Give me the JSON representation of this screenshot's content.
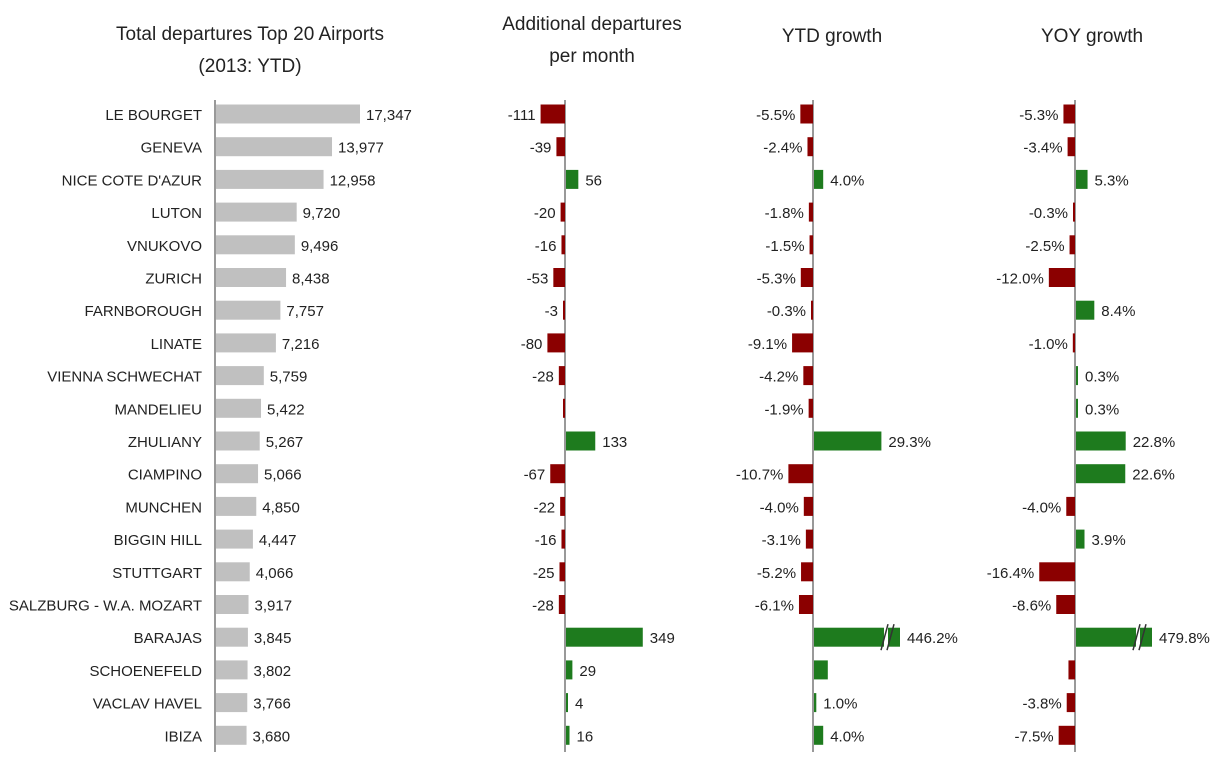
{
  "colors": {
    "gray_bar": "#c0c0c0",
    "positive": "#1e7b1e",
    "negative": "#8b0000",
    "axis": "#333333"
  },
  "chart_data": [
    {
      "type": "bar",
      "orientation": "horizontal",
      "title_lines": [
        "Total departures  Top 20 Airports",
        "(2013: YTD)"
      ],
      "categories": [
        "LE BOURGET",
        "GENEVA",
        "NICE COTE D'AZUR",
        "LUTON",
        "VNUKOVO",
        "ZURICH",
        "FARNBOROUGH",
        "LINATE",
        "VIENNA SCHWECHAT",
        "MANDELIEU",
        "ZHULIANY",
        "CIAMPINO",
        "MUNCHEN",
        "BIGGIN HILL",
        "STUTTGART",
        "SALZBURG  - W.A. MOZART",
        "BARAJAS",
        "SCHOENEFELD",
        "VACLAV  HAVEL",
        "IBIZA"
      ],
      "values": [
        17347,
        13977,
        12958,
        9720,
        9496,
        8438,
        7757,
        7216,
        5759,
        5422,
        5267,
        5066,
        4850,
        4447,
        4066,
        3917,
        3845,
        3802,
        3766,
        3680
      ],
      "labels": [
        "17,347",
        "13,977",
        "12,958",
        "9,720",
        "9,496",
        "8,438",
        "7,757",
        "7,216",
        "5,759",
        "5,422",
        "5,267",
        "5,066",
        "4,850",
        "4,447",
        "4,066",
        "3,917",
        "3,845",
        "3,802",
        "3,766",
        "3,680"
      ]
    },
    {
      "type": "bar",
      "orientation": "horizontal",
      "title_lines": [
        "Additional departures",
        "per month"
      ],
      "values": [
        -111,
        -39,
        56,
        -20,
        -16,
        -53,
        -3,
        -80,
        -28,
        -5,
        133,
        -67,
        -22,
        -16,
        -25,
        -28,
        349,
        29,
        4,
        16
      ],
      "labels": [
        "-111",
        "-39",
        "56",
        "-20",
        "-16",
        "-53",
        "-3",
        "-80",
        "-28",
        "",
        "133",
        "-67",
        "-22",
        "-16",
        "-25",
        "-28",
        "349",
        "29",
        "4",
        "16"
      ]
    },
    {
      "type": "bar",
      "orientation": "horizontal",
      "title_lines": [
        "YTD growth"
      ],
      "values": [
        -5.5,
        -2.4,
        4.0,
        -1.8,
        -1.5,
        -5.3,
        -0.3,
        -9.1,
        -4.2,
        -1.9,
        29.3,
        -10.7,
        -4.0,
        -3.1,
        -5.2,
        -6.1,
        446.2,
        6.0,
        1.0,
        4.0
      ],
      "labels": [
        "-5.5%",
        "-2.4%",
        "4.0%",
        "-1.8%",
        "-1.5%",
        "-5.3%",
        "-0.3%",
        "-9.1%",
        "-4.2%",
        "-1.9%",
        "29.3%",
        "-10.7%",
        "-4.0%",
        "-3.1%",
        "-5.2%",
        "-6.1%",
        "446.2%",
        "",
        "1.0%",
        "4.0%"
      ],
      "axis_break": [
        false,
        false,
        false,
        false,
        false,
        false,
        false,
        false,
        false,
        false,
        false,
        false,
        false,
        false,
        false,
        false,
        true,
        false,
        false,
        false
      ]
    },
    {
      "type": "bar",
      "orientation": "horizontal",
      "title_lines": [
        "YOY growth"
      ],
      "values": [
        -5.3,
        -3.4,
        5.3,
        -0.3,
        -2.5,
        -12.0,
        8.4,
        -1.0,
        0.3,
        0.3,
        22.8,
        22.6,
        -4.0,
        3.9,
        -16.4,
        -8.6,
        479.8,
        -3.0,
        -3.8,
        -7.5
      ],
      "labels": [
        "-5.3%",
        "-3.4%",
        "5.3%",
        "-0.3%",
        "-2.5%",
        "-12.0%",
        "8.4%",
        "-1.0%",
        "0.3%",
        "0.3%",
        "22.8%",
        "22.6%",
        "-4.0%",
        "3.9%",
        "-16.4%",
        "-8.6%",
        "479.8%",
        "",
        "-3.8%",
        "-7.5%"
      ],
      "axis_break": [
        false,
        false,
        false,
        false,
        false,
        false,
        false,
        false,
        false,
        false,
        false,
        false,
        false,
        false,
        false,
        false,
        true,
        false,
        false,
        false
      ]
    }
  ]
}
